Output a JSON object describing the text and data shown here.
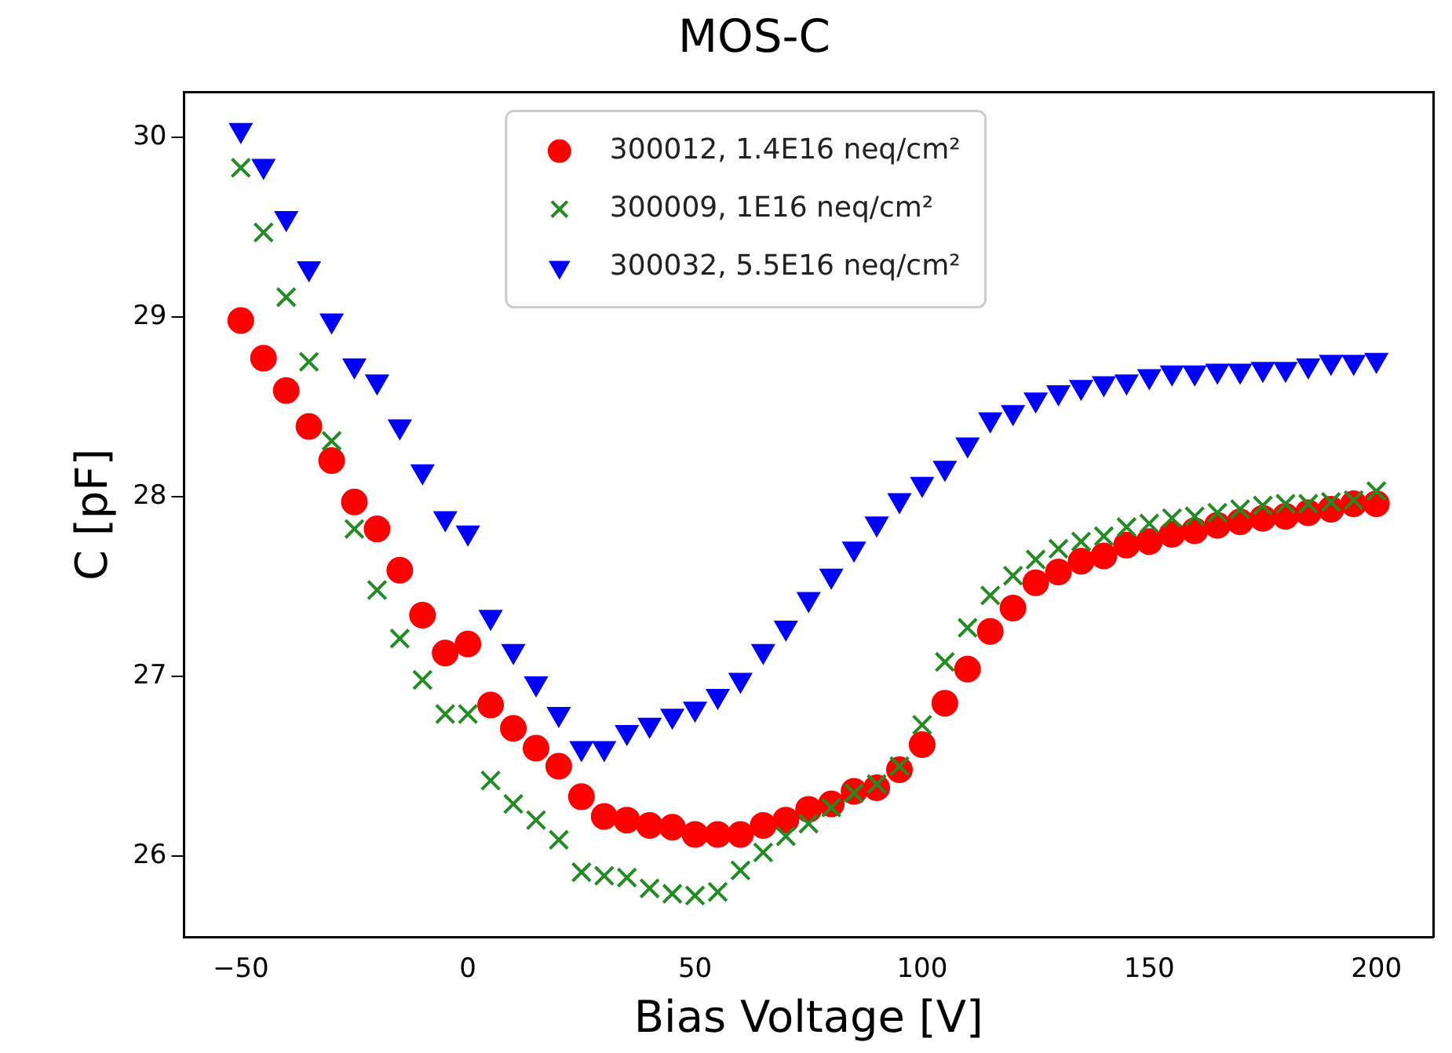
{
  "chart_data": {
    "type": "scatter",
    "title": "MOS-C",
    "xlabel": "Bias Voltage [V]",
    "ylabel": "C [pF]",
    "x": [
      -50,
      -45,
      -40,
      -35,
      -30,
      -25,
      -20,
      -15,
      -10,
      -5,
      0,
      5,
      10,
      15,
      20,
      25,
      30,
      35,
      40,
      45,
      50,
      55,
      60,
      65,
      70,
      75,
      80,
      85,
      90,
      95,
      100,
      105,
      110,
      115,
      120,
      125,
      130,
      135,
      140,
      145,
      150,
      155,
      160,
      165,
      170,
      175,
      180,
      185,
      190,
      195,
      200
    ],
    "series": [
      {
        "name": "300012, 1.4E16 neq/cm²",
        "color": "#ff0000",
        "marker": "circle",
        "values": [
          28.98,
          28.77,
          28.59,
          28.39,
          28.2,
          27.97,
          27.82,
          27.59,
          27.34,
          27.13,
          27.18,
          26.84,
          26.71,
          26.6,
          26.5,
          26.33,
          26.22,
          26.2,
          26.17,
          26.16,
          26.12,
          26.12,
          26.12,
          26.17,
          26.2,
          26.26,
          26.29,
          26.36,
          26.38,
          26.48,
          26.62,
          26.85,
          27.04,
          27.25,
          27.38,
          27.52,
          27.58,
          27.64,
          27.67,
          27.73,
          27.75,
          27.79,
          27.81,
          27.84,
          27.86,
          27.88,
          27.89,
          27.91,
          27.93,
          27.96,
          27.96
        ]
      },
      {
        "name": "300009, 1E16 neq/cm²",
        "color": "#228b22",
        "marker": "cross",
        "values": [
          29.83,
          29.47,
          29.11,
          28.75,
          28.31,
          27.82,
          27.48,
          27.21,
          26.98,
          26.79,
          26.79,
          26.42,
          26.29,
          26.2,
          26.09,
          25.91,
          25.89,
          25.88,
          25.82,
          25.79,
          25.78,
          25.8,
          25.92,
          26.02,
          26.11,
          26.18,
          26.27,
          26.35,
          26.4,
          26.5,
          26.73,
          27.08,
          27.27,
          27.45,
          27.56,
          27.65,
          27.71,
          27.75,
          27.78,
          27.83,
          27.85,
          27.88,
          27.89,
          27.91,
          27.93,
          27.95,
          27.96,
          27.96,
          27.97,
          27.98,
          28.03
        ]
      },
      {
        "name": "300032, 5.5E16 neq/cm²",
        "color": "#0000ff",
        "marker": "triangle",
        "values": [
          30.04,
          29.84,
          29.55,
          29.27,
          28.98,
          28.73,
          28.64,
          28.39,
          28.14,
          27.88,
          27.8,
          27.33,
          27.14,
          26.96,
          26.79,
          26.6,
          26.6,
          26.69,
          26.73,
          26.78,
          26.82,
          26.89,
          26.98,
          27.14,
          27.27,
          27.43,
          27.56,
          27.71,
          27.85,
          27.98,
          28.07,
          28.16,
          28.29,
          28.43,
          28.47,
          28.54,
          28.58,
          28.61,
          28.63,
          28.64,
          28.67,
          28.69,
          28.69,
          28.7,
          28.7,
          28.71,
          28.71,
          28.73,
          28.75,
          28.75,
          28.76
        ]
      }
    ],
    "xlim": [
      -62.5,
      212.5
    ],
    "xticks": [
      -50,
      0,
      50,
      100,
      150,
      200
    ],
    "ylim": [
      25.55,
      30.25
    ],
    "yticks": [
      26,
      27,
      28,
      29,
      30
    ],
    "grid": false,
    "legend": "top center"
  }
}
